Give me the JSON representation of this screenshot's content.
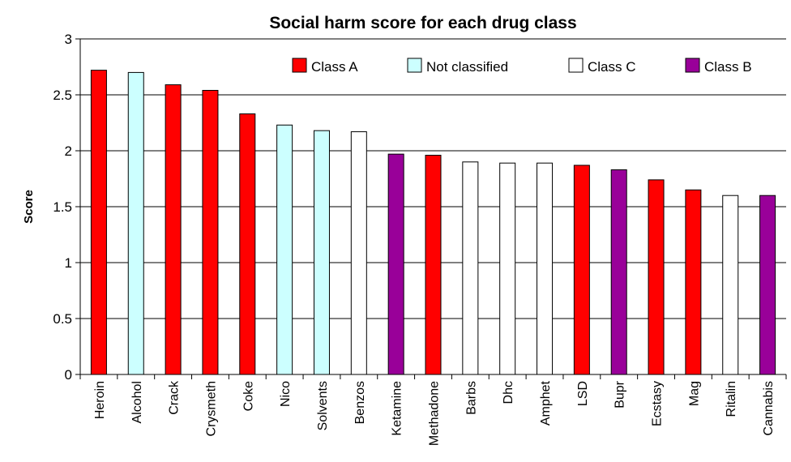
{
  "chart_data": {
    "type": "bar",
    "title": "Social harm score for each drug class",
    "xlabel": "",
    "ylabel": "Score",
    "ylim": [
      0,
      3
    ],
    "yticks": [
      0,
      0.5,
      1,
      1.5,
      2,
      2.5,
      3
    ],
    "ytick_labels": [
      "0",
      "0.5",
      "1",
      "1.5",
      "2",
      "2.5",
      "3"
    ],
    "grid": true,
    "legend_position": "top-right",
    "categories": [
      "Heroin",
      "Alcohol",
      "Crack",
      "Crysmeth",
      "Coke",
      "Nico",
      "Solvents",
      "Benzos",
      "Ketamine",
      "Methadone",
      "Barbs",
      "Dhc",
      "Amphet",
      "LSD",
      "Bupr",
      "Ecstasy",
      "Mag",
      "Ritalin",
      "Cannabis"
    ],
    "values": [
      2.72,
      2.7,
      2.59,
      2.54,
      2.33,
      2.23,
      2.18,
      2.17,
      1.97,
      1.96,
      1.9,
      1.89,
      1.89,
      1.87,
      1.83,
      1.74,
      1.65,
      1.6,
      1.6
    ],
    "classes": [
      "Class A",
      "Not classified",
      "Class A",
      "Class A",
      "Class A",
      "Not classified",
      "Not classified",
      "Class C",
      "Class B",
      "Class A",
      "Class C",
      "Class C",
      "Class C",
      "Class A",
      "Class B",
      "Class A",
      "Class A",
      "Class C",
      "Class B"
    ],
    "legend": [
      {
        "label": "Class A",
        "color": "#ff0000"
      },
      {
        "label": "Not classified",
        "color": "#ccffff"
      },
      {
        "label": "Class C",
        "color": "#ffffff"
      },
      {
        "label": "Class B",
        "color": "#990099"
      }
    ]
  }
}
